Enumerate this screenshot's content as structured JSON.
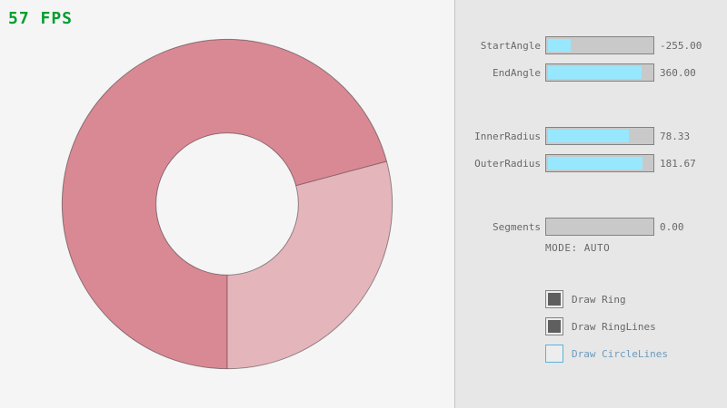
{
  "fps": {
    "text": "57 FPS"
  },
  "ring": {
    "start_angle": -255.0,
    "end_angle": 360.0,
    "inner_radius": 78.33,
    "outer_radius": 181.67,
    "segments": 0,
    "mode": "AUTO",
    "color_single_pass": "#E5B5BC",
    "color_double_pass": "#D98994",
    "outline_color": "rgba(0,0,0,0.4)"
  },
  "colors": {
    "background": "#F5F5F5",
    "panel_bg": "#E7E7E7",
    "panel_divider": "#C2C2C2",
    "fps_green": "#009E2F",
    "slider_track": "#C9C9C9",
    "slider_fill": "#97E8FF",
    "slider_border": "#838383",
    "text_gray": "#686868",
    "checkbox_fill": "#5F5F5F",
    "focused_border": "#5BB2D9",
    "focused_text": "#6C9BBC"
  },
  "panel": {
    "sliders": [
      {
        "label": "StartAngle",
        "value": "-255.00",
        "fill_pct": 21.7
      },
      {
        "label": "EndAngle",
        "value": "360.00",
        "fill_pct": 90.0
      },
      {
        "label": "InnerRadius",
        "value": "78.33",
        "fill_pct": 78.3
      },
      {
        "label": "OuterRadius",
        "value": "181.67",
        "fill_pct": 90.8
      },
      {
        "label": "Segments",
        "value": "0.00",
        "fill_pct": 0
      }
    ],
    "mode_text": "MODE: AUTO",
    "checkboxes": [
      {
        "label": "Draw Ring",
        "checked": true,
        "focused": false
      },
      {
        "label": "Draw RingLines",
        "checked": true,
        "focused": false
      },
      {
        "label": "Draw CircleLines",
        "checked": false,
        "focused": true
      }
    ]
  }
}
